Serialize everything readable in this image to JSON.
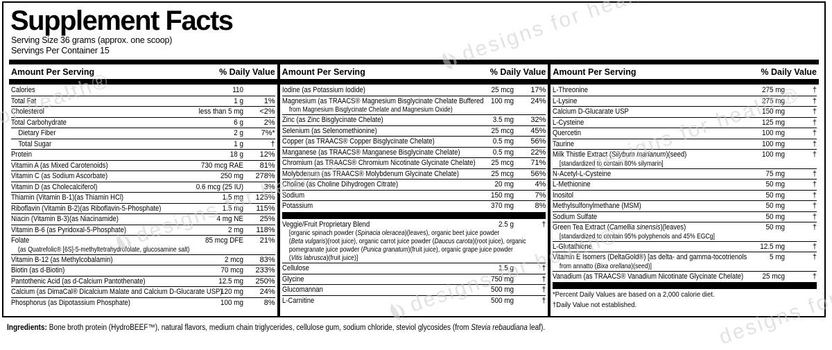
{
  "title": "Supplement Facts",
  "serving": {
    "size_line": "Serving Size 36 grams (approx. one scoop)",
    "container_line": "Servings Per Container 15"
  },
  "header": {
    "amount_label": "Amount Per Serving",
    "dv_label": "% Daily Value"
  },
  "columns": [
    {
      "rows": [
        {
          "label": "Calories",
          "amount": "110",
          "dv": ""
        },
        {
          "label": "Total Fat",
          "amount": "1 g",
          "dv": "1%"
        },
        {
          "label": "Cholesterol",
          "amount": "less than 5 mg",
          "dv": "<2%"
        },
        {
          "label": "Total Carbohydrate",
          "amount": "6 g",
          "dv": "2%"
        },
        {
          "label": "Dietary Fiber",
          "amount": "2 g",
          "dv": "7%*",
          "indent": true
        },
        {
          "label": "Total Sugar",
          "amount": "1 g",
          "dv": "†",
          "indent": true
        },
        {
          "label": "Protein",
          "amount": "18 g",
          "dv": "12%"
        },
        {
          "label": "Vitamin A (as Mixed Carotenoids)",
          "amount": "730 mcg RAE",
          "dv": "81%"
        },
        {
          "label": "Vitamin C (as Sodium Ascorbate)",
          "amount": "250 mg",
          "dv": "278%"
        },
        {
          "label": "Vitamin D (as Cholecalciferol)",
          "amount": "0.6 mcg (25 IU)",
          "dv": "3%"
        },
        {
          "label": "Thiamin (Vitamin B-1)(as Thiamin HCl)",
          "amount": "1.5 mg",
          "dv": "125%"
        },
        {
          "label": "Riboflavin (Vitamin B-2)(as Riboflavin-5-Phosphate)",
          "amount": "1.5 mg",
          "dv": "115%"
        },
        {
          "label": "Niacin (Vitamin B-3)(as Niacinamide)",
          "amount": "4 mg NE",
          "dv": "25%"
        },
        {
          "label": "Vitamin B-6 (as Pyridoxal-5-Phosphate)",
          "amount": "2 mg",
          "dv": "118%"
        },
        {
          "label": "Folate",
          "amount": "85 mcg DFE",
          "dv": "21%",
          "cont": [
            "(as Quatrefolic® [6S]-5-methyltetrahydrofolate, glucosamine salt)"
          ]
        },
        {
          "label": "Vitamin B-12 (as Methylcobalamin)",
          "amount": "2 mcg",
          "dv": "83%"
        },
        {
          "label": "Biotin (as d-Biotin)",
          "amount": "70 mcg",
          "dv": "233%"
        },
        {
          "label": "Pantothenic Acid (as d-Calcium Pantothenate)",
          "amount": "12.5 mg",
          "dv": "250%"
        },
        {
          "label": "Calcium (as DimaCal® Dicalcium Malate and Calcium D-Glucarate USP)",
          "amount": "120 mg",
          "dv": "24%"
        },
        {
          "label": "Phosphorus (as Dipotassium Phosphate)",
          "amount": "100 mg",
          "dv": "8%"
        }
      ]
    },
    {
      "rows": [
        {
          "label": "Iodine (as Potassium Iodide)",
          "amount": "25 mcg",
          "dv": "17%"
        },
        {
          "label": "Magnesium (as TRAACS® Magnesium Bisglycinate Chelate Buffered",
          "amount": "100 mg",
          "dv": "24%",
          "cont": [
            "from Magnesium Bisglycinate Chelate and Magnesium Oxide)"
          ]
        },
        {
          "label": "Zinc (as Zinc Bisglycinate Chelate)",
          "amount": "3.5 mg",
          "dv": "32%"
        },
        {
          "label": "Selenium (as Selenomethionine)",
          "amount": "25 mcg",
          "dv": "45%"
        },
        {
          "label": "Copper (as TRAACS® Copper Bisglycinate Chelate)",
          "amount": "0.5 mg",
          "dv": "56%"
        },
        {
          "label": "Manganese (as TRAACS® Manganese Bisglycinate Chelate)",
          "amount": "0.5 mg",
          "dv": "22%"
        },
        {
          "label": "Chromium (as TRAACS® Chromium Nicotinate Glycinate Chelate)",
          "amount": "25 mcg",
          "dv": "71%"
        },
        {
          "label": "Molybdenum (as TRAACS® Molybdenum Glycinate Chelate)",
          "amount": "25 mcg",
          "dv": "56%"
        },
        {
          "label": "Choline (as Choline Dihydrogen Citrate)",
          "amount": "20 mg",
          "dv": "4%"
        },
        {
          "label": "Sodium",
          "amount": "150 mg",
          "dv": "7%"
        },
        {
          "label": "Potassium",
          "amount": "370 mg",
          "dv": "8%"
        },
        {
          "bar": true
        },
        {
          "label": "Veggie/Fruit Proprietary Blend",
          "amount": "2.5 g",
          "dv": "†",
          "cont": [
            "[organic spinach powder (~Spinacia oleracea~)(leaves), organic beet juice powder",
            "(~Beta vulgaris~)(root juice), organic carrot juice powder (~Daucus carota~)(root juice), organic",
            "pomegranate juice powder (~Punica granatum~)(fruit juice), organic grape juice powder",
            "(~Vitis labrusca~)(fruit juice)]"
          ]
        },
        {
          "label": "Cellulose",
          "amount": "1.5 g",
          "dv": "†"
        },
        {
          "label": "Glycine",
          "amount": "750 mg",
          "dv": "†"
        },
        {
          "label": "Glucomannan",
          "amount": "500 mg",
          "dv": "†"
        },
        {
          "label": "L-Carnitine",
          "amount": "500 mg",
          "dv": "†"
        }
      ]
    },
    {
      "rows": [
        {
          "label": "L-Threonine",
          "amount": "275 mg",
          "dv": "†"
        },
        {
          "label": "L-Lysine",
          "amount": "275 mg",
          "dv": "†"
        },
        {
          "label": "Calcium D-Glucarate USP",
          "amount": "150 mg",
          "dv": "†"
        },
        {
          "label": "L-Cysteine",
          "amount": "125 mg",
          "dv": "†"
        },
        {
          "label": "Quercetin",
          "amount": "100 mg",
          "dv": "†"
        },
        {
          "label": "Taurine",
          "amount": "100 mg",
          "dv": "†"
        },
        {
          "label": "Milk Thistle Extract (~Silybum marianum~)(seed)",
          "amount": "100 mg",
          "dv": "†",
          "cont": [
            "[standardized to contain 80% silymarin]"
          ]
        },
        {
          "label": "N-Acetyl-L-Cysteine",
          "amount": "75 mg",
          "dv": "†"
        },
        {
          "label": "L-Methionine",
          "amount": "50 mg",
          "dv": "†"
        },
        {
          "label": "Inositol",
          "amount": "50 mg",
          "dv": "†"
        },
        {
          "label": "Methylsulfonylmethane (MSM)",
          "amount": "50 mg",
          "dv": "†"
        },
        {
          "label": "Sodium Sulfate",
          "amount": "50 mg",
          "dv": "†"
        },
        {
          "label": "Green Tea Extract (~Camellia sinensis~)(leaves)",
          "amount": "50 mg",
          "dv": "†",
          "cont": [
            "[standardized to contain 95% polyphenols and 45% EGCg]"
          ]
        },
        {
          "label": "L-Glutathione",
          "amount": "12.5 mg",
          "dv": "†"
        },
        {
          "label": "Vitamin E Isomers (DeltaGold®) [as delta- and gamma-tocotrienols",
          "amount": "5 mg",
          "dv": "†",
          "cont": [
            "from annatto (~Bixa orellana~)(seed)]"
          ]
        },
        {
          "label": "Vanadium (as TRAACS® Vanadium Nicotinate Glycinate Chelate)",
          "amount": "25 mcg",
          "dv": "†"
        },
        {
          "bar": true
        },
        {
          "label": "*Percent Daily Values are based on a 2,000 calorie diet.",
          "foot": true
        },
        {
          "label": "†Daily Value not established.",
          "foot": true
        }
      ]
    }
  ],
  "ingredients": {
    "label": "Ingredients:",
    "text": " Bone broth protein (HydroBEEF™), natural flavors, medium chain triglycerides, cellulose gum, sodium chloride, steviol glycosides (from ~Stevia rebaudiana~ leaf)."
  },
  "watermark": {
    "text": "designs for health®",
    "color": "#cbcbcb"
  }
}
